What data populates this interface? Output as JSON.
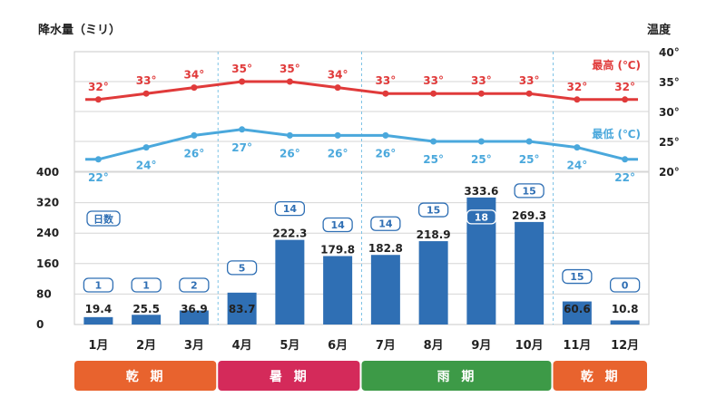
{
  "chart_data": {
    "type": "bar+line",
    "categories": [
      "1月",
      "2月",
      "3月",
      "4月",
      "5月",
      "6月",
      "7月",
      "8月",
      "9月",
      "10月",
      "11月",
      "12月"
    ],
    "precipitation": {
      "name": "降水量（ミリ）",
      "values": [
        19.4,
        25.5,
        36.9,
        83.7,
        222.3,
        179.8,
        182.8,
        218.9,
        333.6,
        269.3,
        60.6,
        10.8
      ],
      "yticks": [
        "0",
        "80",
        "160",
        "240",
        "320",
        "400"
      ],
      "ylim": [
        0,
        400
      ],
      "color": "#2f6fb4"
    },
    "rain_days": {
      "label": "日数",
      "values": [
        "1",
        "1",
        "2",
        "5",
        "14",
        "14",
        "14",
        "15",
        "18",
        "15",
        "15",
        "0"
      ]
    },
    "temperature": {
      "title": "温度",
      "yticks": [
        "20°",
        "25°",
        "30°",
        "35°",
        "40°"
      ],
      "ylim": [
        20,
        40
      ],
      "series": [
        {
          "name": "最高 (℃)",
          "values": [
            32,
            33,
            34,
            35,
            35,
            34,
            33,
            33,
            33,
            33,
            32,
            32
          ],
          "labels": [
            "32°",
            "33°",
            "34°",
            "35°",
            "35°",
            "34°",
            "33°",
            "33°",
            "33°",
            "33°",
            "32°",
            "32°"
          ],
          "color": "#e03a3a"
        },
        {
          "name": "最低 (℃)",
          "values": [
            22,
            24,
            26,
            27,
            26,
            26,
            26,
            25,
            25,
            25,
            24,
            22
          ],
          "labels": [
            "22°",
            "24°",
            "26°",
            "27°",
            "26°",
            "26°",
            "26°",
            "25°",
            "25°",
            "25°",
            "24°",
            "22°"
          ],
          "color": "#4aa8dc"
        }
      ]
    },
    "seasons": [
      {
        "label": "乾 期",
        "from": 0,
        "to": 2,
        "color": "#e8632e"
      },
      {
        "label": "暑 期",
        "from": 3,
        "to": 5,
        "color": "#d42a5a"
      },
      {
        "label": "雨 期",
        "from": 6,
        "to": 9,
        "color": "#3d9a47"
      },
      {
        "label": "乾 期",
        "from": 10,
        "to": 11,
        "color": "#e8632e"
      }
    ]
  }
}
